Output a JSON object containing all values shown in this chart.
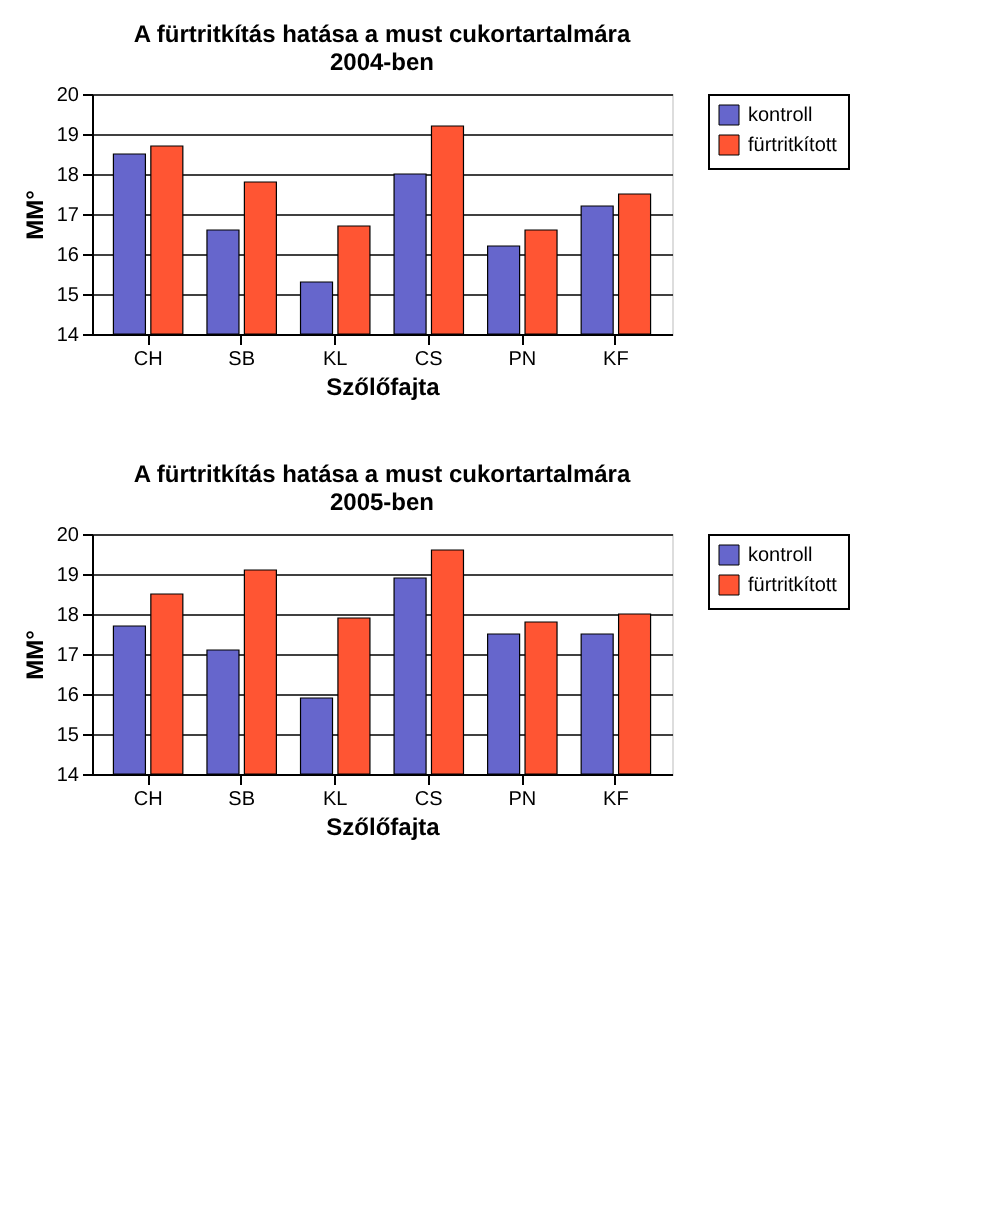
{
  "chart_data": [
    {
      "type": "bar",
      "title": "A fürtritkítás hatása a must cukortartalmára\n2004-ben",
      "xlabel": "Szőlőfajta",
      "ylabel": "MM°",
      "categories": [
        "CH",
        "SB",
        "KL",
        "CS",
        "PN",
        "KF"
      ],
      "series": [
        {
          "name": "kontroll",
          "color": "#6666cc",
          "values": [
            18.5,
            16.6,
            15.3,
            18.0,
            16.2,
            17.2
          ]
        },
        {
          "name": "fürtritkított",
          "color": "#ff5533",
          "values": [
            18.7,
            17.8,
            16.7,
            19.2,
            16.6,
            17.5
          ]
        }
      ],
      "ylim": [
        14,
        20
      ],
      "yticks": [
        14,
        15,
        16,
        17,
        18,
        19,
        20
      ],
      "grid": "y",
      "legend": "right"
    },
    {
      "type": "bar",
      "title": "A fürtritkítás hatása a must cukortartalmára\n2005-ben",
      "xlabel": "Szőlőfajta",
      "ylabel": "MM°",
      "categories": [
        "CH",
        "SB",
        "KL",
        "CS",
        "PN",
        "KF"
      ],
      "series": [
        {
          "name": "kontroll",
          "color": "#6666cc",
          "values": [
            17.7,
            17.1,
            15.9,
            18.9,
            17.5,
            17.5
          ]
        },
        {
          "name": "fürtritkított",
          "color": "#ff5533",
          "values": [
            18.5,
            19.1,
            17.9,
            19.6,
            17.8,
            18.0
          ]
        }
      ],
      "ylim": [
        14,
        20
      ],
      "yticks": [
        14,
        15,
        16,
        17,
        18,
        19,
        20
      ],
      "grid": "y",
      "legend": "right"
    }
  ]
}
